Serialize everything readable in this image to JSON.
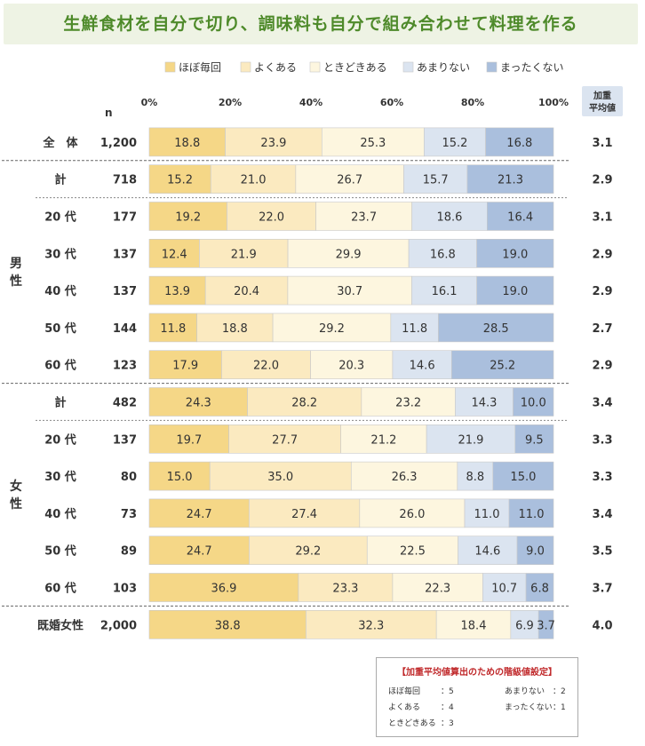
{
  "title": "生鮮食材を自分で切り、調味料も自分で組み合わせて料理を作る",
  "chart_data": {
    "type": "bar",
    "stacked": true,
    "orientation": "horizontal",
    "title": "生鮮食材を自分で切り、調味料も自分で組み合わせて料理を作る",
    "n_label": "n",
    "avg_label": [
      "加重",
      "平均値"
    ],
    "xlim": [
      0,
      100
    ],
    "x_ticks": [
      "0%",
      "20%",
      "40%",
      "60%",
      "80%",
      "100%"
    ],
    "legend_position": "top-right",
    "series": [
      {
        "name": "ほぼ毎回",
        "color": "#f5d787"
      },
      {
        "name": "よくある",
        "color": "#fbeac0"
      },
      {
        "name": "ときどきある",
        "color": "#fdf6df"
      },
      {
        "name": "あまりない",
        "color": "#dbe4f0"
      },
      {
        "name": "まったくない",
        "color": "#aabfdd"
      }
    ],
    "groups": [
      {
        "label": "",
        "rows": [
          {
            "label": "全　体",
            "n": "1,200",
            "values": [
              18.8,
              23.9,
              25.3,
              15.2,
              16.8
            ],
            "avg": "3.1"
          }
        ]
      },
      {
        "label": "男\n性",
        "rows": [
          {
            "label": "計",
            "n": "718",
            "values": [
              15.2,
              21.0,
              26.7,
              15.7,
              21.3
            ],
            "avg": "2.9"
          },
          {
            "label": "20 代",
            "n": "177",
            "values": [
              19.2,
              22.0,
              23.7,
              18.6,
              16.4
            ],
            "avg": "3.1"
          },
          {
            "label": "30 代",
            "n": "137",
            "values": [
              12.4,
              21.9,
              29.9,
              16.8,
              19.0
            ],
            "avg": "2.9"
          },
          {
            "label": "40 代",
            "n": "137",
            "values": [
              13.9,
              20.4,
              30.7,
              16.1,
              19.0
            ],
            "avg": "2.9"
          },
          {
            "label": "50 代",
            "n": "144",
            "values": [
              11.8,
              18.8,
              29.2,
              11.8,
              28.5
            ],
            "avg": "2.7"
          },
          {
            "label": "60 代",
            "n": "123",
            "values": [
              17.9,
              22.0,
              20.3,
              14.6,
              25.2
            ],
            "avg": "2.9"
          }
        ]
      },
      {
        "label": "女\n性",
        "rows": [
          {
            "label": "計",
            "n": "482",
            "values": [
              24.3,
              28.2,
              23.2,
              14.3,
              10.0
            ],
            "avg": "3.4"
          },
          {
            "label": "20 代",
            "n": "137",
            "values": [
              19.7,
              27.7,
              21.2,
              21.9,
              9.5
            ],
            "avg": "3.3"
          },
          {
            "label": "30 代",
            "n": "80",
            "values": [
              15.0,
              35.0,
              26.3,
              8.8,
              15.0
            ],
            "avg": "3.3"
          },
          {
            "label": "40 代",
            "n": "73",
            "values": [
              24.7,
              27.4,
              26.0,
              11.0,
              11.0
            ],
            "avg": "3.4"
          },
          {
            "label": "50 代",
            "n": "89",
            "values": [
              24.7,
              29.2,
              22.5,
              14.6,
              9.0
            ],
            "avg": "3.5"
          },
          {
            "label": "60 代",
            "n": "103",
            "values": [
              36.9,
              23.3,
              22.3,
              10.7,
              6.8
            ],
            "avg": "3.7"
          }
        ]
      },
      {
        "label": "",
        "rows": [
          {
            "label": "既婚女性",
            "n": "2,000",
            "values": [
              38.8,
              32.3,
              18.4,
              6.9,
              3.7
            ],
            "avg": "4.0"
          }
        ]
      }
    ]
  },
  "settings": {
    "title": "【加重平均値算出のための階級値設定】",
    "items": [
      {
        "label": "ほぼ毎回",
        "value": "：5"
      },
      {
        "label": "よくある",
        "value": "：4"
      },
      {
        "label": "ときどきある",
        "value": "：3"
      },
      {
        "label": "あまりない",
        "value": "：2"
      },
      {
        "label": "まったくない",
        "value": "：1"
      }
    ]
  }
}
